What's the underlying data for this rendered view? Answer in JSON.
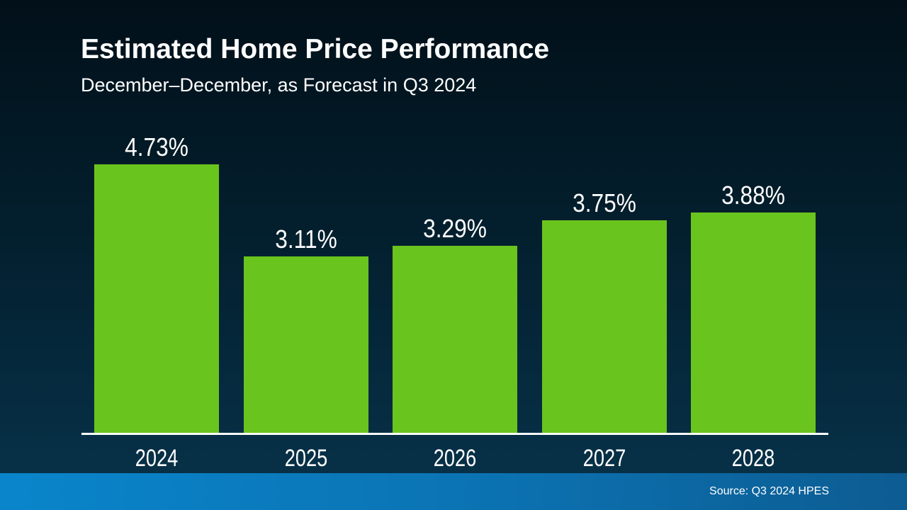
{
  "slide": {
    "title": "Estimated Home Price Performance",
    "subtitle": "December–December, as Forecast in Q3 2024",
    "source": "Source: Q3 2024 HPES"
  },
  "chart_data": {
    "type": "bar",
    "title": "Estimated Home Price Performance",
    "subtitle": "December–December, as Forecast in Q3 2024",
    "categories": [
      "2024",
      "2025",
      "2026",
      "2027",
      "2028"
    ],
    "values": [
      4.73,
      3.11,
      3.29,
      3.75,
      3.88
    ],
    "value_labels": [
      "4.73%",
      "3.11%",
      "3.29%",
      "3.75%",
      "3.88%"
    ],
    "unit": "%",
    "xlabel": "",
    "ylabel": "",
    "ylim": [
      0,
      5.5
    ],
    "grid": false,
    "legend": "none",
    "bar_color": "#6ac41e",
    "label_color": "#ffffff",
    "source": "Source: Q3 2024 HPES"
  },
  "colors": {
    "background_top": "#021019",
    "background_bottom": "#0a3349",
    "bar_green": "#6ac41e",
    "axis_line": "#ffffff",
    "footer_blue_left": "#0a85cb",
    "footer_blue_right": "#0d5c92",
    "text": "#ffffff"
  }
}
